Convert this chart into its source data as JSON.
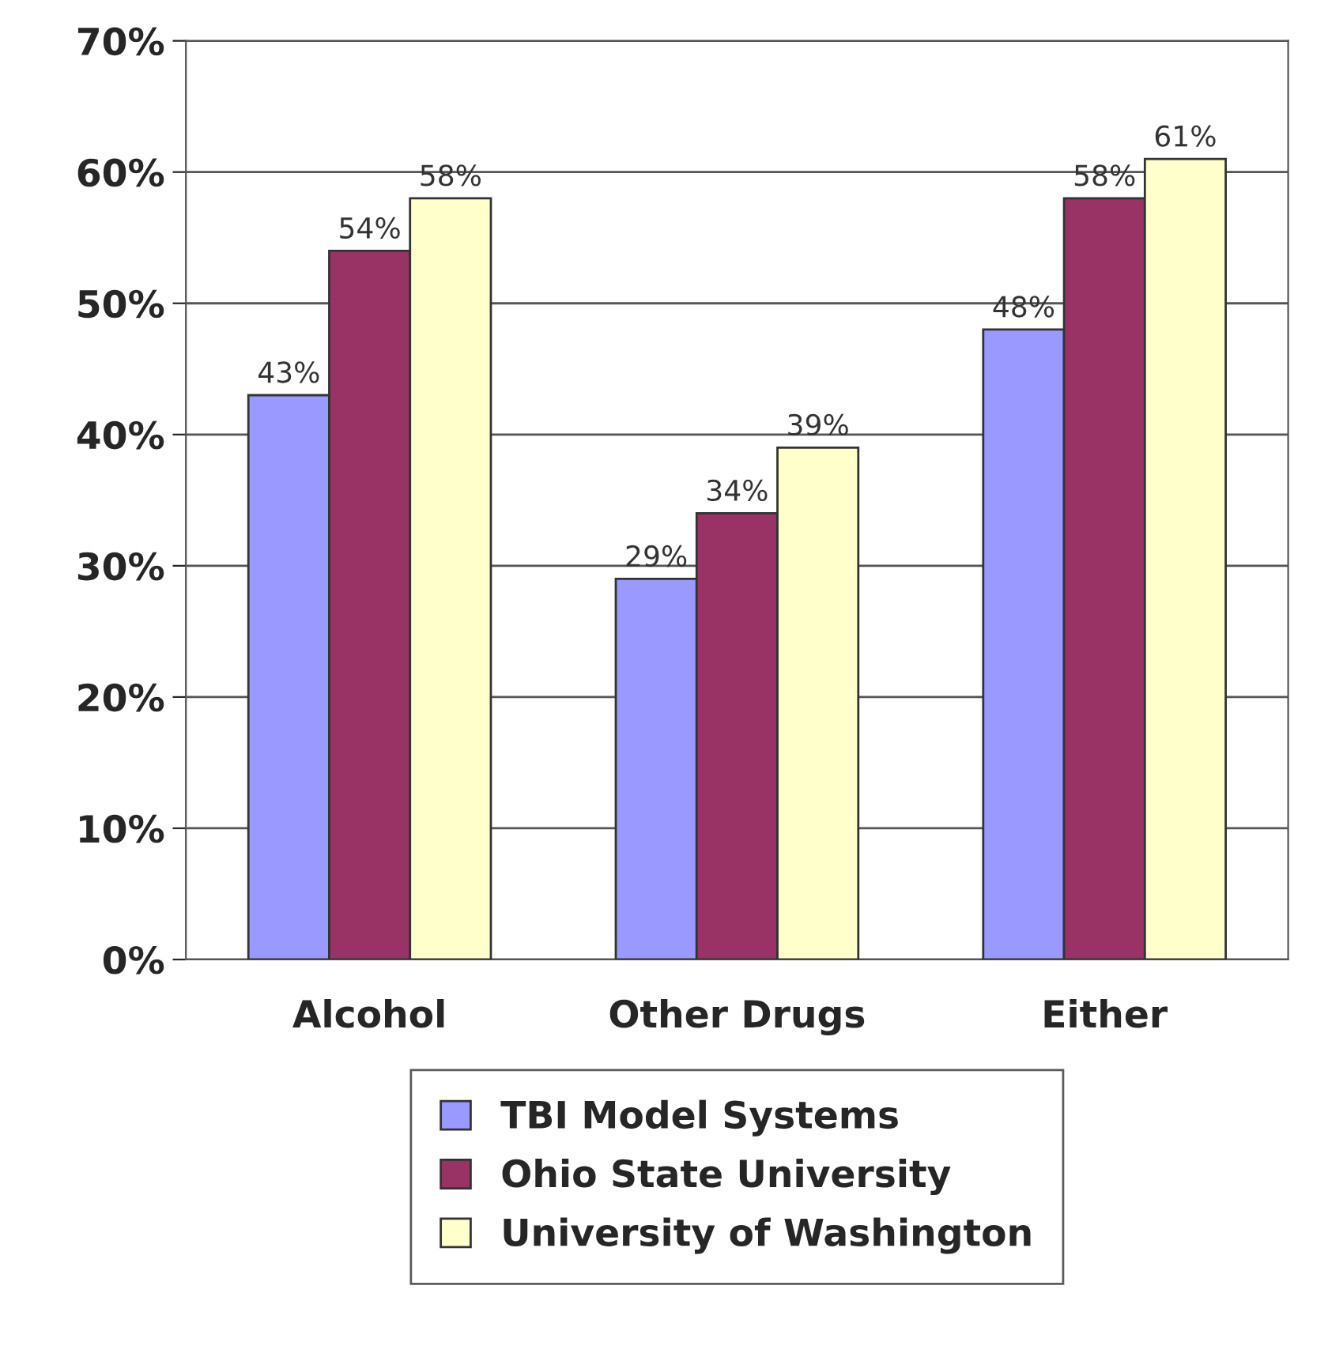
{
  "chart_data": {
    "type": "bar",
    "categories": [
      "Alcohol",
      "Other Drugs",
      "Either"
    ],
    "series": [
      {
        "name": "TBI Model Systems",
        "color": "#9999ff",
        "values": [
          43,
          29,
          48
        ],
        "value_labels": [
          "43%",
          "29%",
          "48%"
        ]
      },
      {
        "name": "Ohio State University",
        "color": "#993366",
        "values": [
          54,
          34,
          58
        ],
        "value_labels": [
          "54%",
          "34%",
          "58%"
        ]
      },
      {
        "name": "University of Washington",
        "color": "#ffffcc",
        "values": [
          58,
          39,
          61
        ],
        "value_labels": [
          "58%",
          "39%",
          "61%"
        ]
      }
    ],
    "ylim": [
      0,
      70
    ],
    "yticks": [
      {
        "value": 0,
        "label": "0%"
      },
      {
        "value": 10,
        "label": "10%"
      },
      {
        "value": 20,
        "label": "20%"
      },
      {
        "value": 30,
        "label": "30%"
      },
      {
        "value": 40,
        "label": "40%"
      },
      {
        "value": 50,
        "label": "50%"
      },
      {
        "value": 60,
        "label": "60%"
      },
      {
        "value": 70,
        "label": "70%"
      }
    ],
    "grid": "y",
    "legend": "bottom"
  }
}
